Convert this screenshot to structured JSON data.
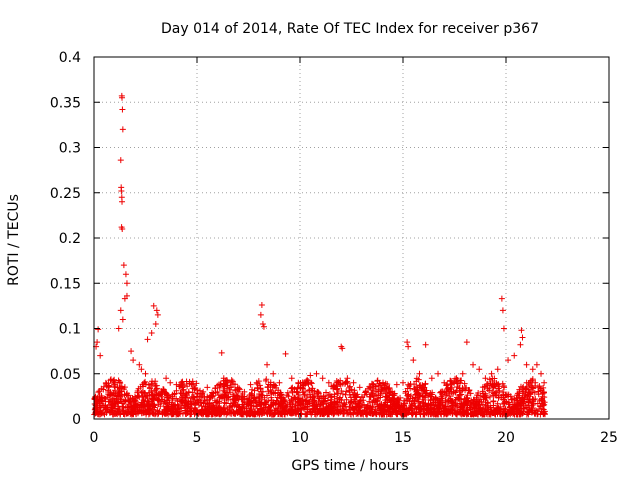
{
  "chart_data": {
    "type": "scatter",
    "title": "Day 014 of 2014, Rate Of TEC Index for receiver p367",
    "xlabel": "GPS time / hours",
    "ylabel": "ROTI / TECUs",
    "xlim": [
      0,
      25
    ],
    "ylim": [
      0,
      0.4
    ],
    "xticks": [
      0,
      5,
      10,
      15,
      20,
      25
    ],
    "yticks": [
      0,
      0.05,
      0.1,
      0.15,
      0.2,
      0.25,
      0.3,
      0.35,
      0.4
    ],
    "grid": true,
    "marker": "+",
    "color": "#ee0000",
    "series": [
      {
        "name": "ROTI",
        "x": [
          1.35,
          1.36,
          1.38,
          1.4,
          1.3,
          1.32,
          1.33,
          1.35,
          1.36,
          1.34,
          1.37,
          1.45,
          1.55,
          1.6,
          1.6,
          1.5,
          1.3,
          1.4,
          1.2,
          2.9,
          3.05,
          3.1,
          3.0,
          2.8,
          2.6,
          8.15,
          8.1,
          8.2,
          8.25,
          6.2,
          9.3,
          12.0,
          12.05,
          15.2,
          15.25,
          16.1,
          18.1,
          19.8,
          19.85,
          19.9,
          20.75,
          20.8,
          20.7,
          21.5,
          0.15,
          0.1,
          0.3,
          0.2,
          1.8,
          1.9,
          2.2,
          2.3,
          2.5,
          3.5,
          3.7,
          4.0,
          4.3,
          4.6,
          5.0,
          5.3,
          5.5,
          5.8,
          6.0,
          6.3,
          6.6,
          7.0,
          7.3,
          7.6,
          7.9,
          8.4,
          8.7,
          9.0,
          9.6,
          9.9,
          10.2,
          10.5,
          10.8,
          11.1,
          11.4,
          11.7,
          12.3,
          12.6,
          12.9,
          13.2,
          13.5,
          13.8,
          14.1,
          14.4,
          14.7,
          15.0,
          15.5,
          15.8,
          16.4,
          16.7,
          17.0,
          17.3,
          17.6,
          17.9,
          18.4,
          18.7,
          19.0,
          19.3,
          19.6,
          20.1,
          20.4,
          21.0,
          21.3,
          21.7,
          21.85
        ],
        "y": [
          0.357,
          0.355,
          0.342,
          0.32,
          0.286,
          0.256,
          0.252,
          0.245,
          0.24,
          0.212,
          0.21,
          0.17,
          0.16,
          0.15,
          0.136,
          0.133,
          0.12,
          0.11,
          0.1,
          0.125,
          0.12,
          0.115,
          0.105,
          0.095,
          0.088,
          0.126,
          0.115,
          0.105,
          0.102,
          0.073,
          0.072,
          0.08,
          0.078,
          0.085,
          0.08,
          0.082,
          0.085,
          0.133,
          0.12,
          0.1,
          0.098,
          0.09,
          0.082,
          0.06,
          0.085,
          0.08,
          0.07,
          0.099,
          0.075,
          0.065,
          0.06,
          0.055,
          0.05,
          0.045,
          0.04,
          0.038,
          0.035,
          0.03,
          0.032,
          0.03,
          0.035,
          0.028,
          0.03,
          0.045,
          0.035,
          0.03,
          0.03,
          0.038,
          0.04,
          0.06,
          0.05,
          0.04,
          0.045,
          0.035,
          0.04,
          0.048,
          0.05,
          0.045,
          0.04,
          0.035,
          0.045,
          0.04,
          0.035,
          0.03,
          0.032,
          0.03,
          0.035,
          0.03,
          0.038,
          0.04,
          0.065,
          0.05,
          0.045,
          0.05,
          0.04,
          0.042,
          0.045,
          0.05,
          0.06,
          0.055,
          0.045,
          0.05,
          0.055,
          0.065,
          0.07,
          0.06,
          0.055,
          0.05,
          0.04
        ]
      }
    ],
    "dense_band": {
      "x_range": [
        0,
        21.9
      ],
      "y_floor": 0.005,
      "y_typical_top": 0.04
    }
  }
}
